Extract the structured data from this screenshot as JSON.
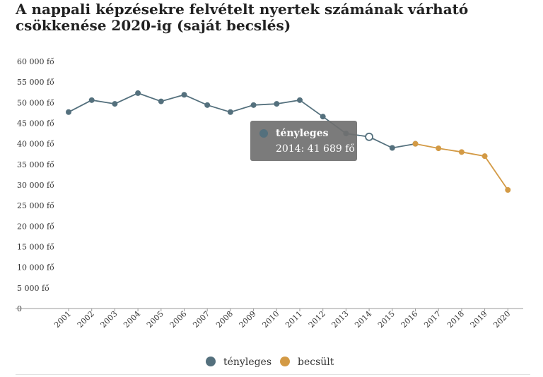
{
  "title": "A nappali képzésekre felvételt nyertek számának várható csökkenése 2020-ig (saját becslés)",
  "colors": {
    "actual": "#54707d",
    "estimate": "#d39a45",
    "axis": "#999999"
  },
  "tooltip": {
    "series": "tényleges",
    "text": "2014: 41 689 fő"
  },
  "legend": [
    {
      "label": "tényleges",
      "color": "#54707d"
    },
    {
      "label": "becsült",
      "color": "#d39a45"
    }
  ],
  "chart_data": {
    "type": "line",
    "title": "A nappali képzésekre felvételt nyertek számának várható csökkenése 2020-ig (saját becslés)",
    "xlabel": "",
    "ylabel": "",
    "ylim": [
      0,
      60000
    ],
    "yticks": [
      0,
      5000,
      10000,
      15000,
      20000,
      25000,
      30000,
      35000,
      40000,
      45000,
      50000,
      55000,
      60000
    ],
    "ytick_labels": [
      "0",
      "5 000 fő",
      "10 000 fő",
      "15 000 fő",
      "20 000 fő",
      "25 000 fő",
      "30 000 fő",
      "35 000 fő",
      "40 000 fő",
      "45 000 fő",
      "50 000 fő",
      "55 000 fő",
      "60 000 fő"
    ],
    "categories": [
      "2001",
      "2002",
      "2003",
      "2004",
      "2005",
      "2006",
      "2007",
      "2008",
      "2009",
      "2010",
      "2011",
      "2012",
      "2013",
      "2014",
      "2015",
      "2016",
      "2017",
      "2018",
      "2019",
      "2020"
    ],
    "series": [
      {
        "name": "tényleges",
        "color": "#54707d",
        "values": [
          47700,
          50600,
          49700,
          52300,
          50300,
          51900,
          49400,
          47700,
          49400,
          49700,
          50600,
          46600,
          42500,
          41689,
          39000,
          40000,
          null,
          null,
          null,
          null
        ]
      },
      {
        "name": "becsült",
        "color": "#d39a45",
        "values": [
          null,
          null,
          null,
          null,
          null,
          null,
          null,
          null,
          null,
          null,
          null,
          null,
          null,
          null,
          null,
          40000,
          38900,
          38000,
          37000,
          28800
        ]
      }
    ],
    "highlight": {
      "series": "tényleges",
      "category": "2014",
      "value": 41689
    },
    "grid": false,
    "legend": "bottom-center"
  }
}
